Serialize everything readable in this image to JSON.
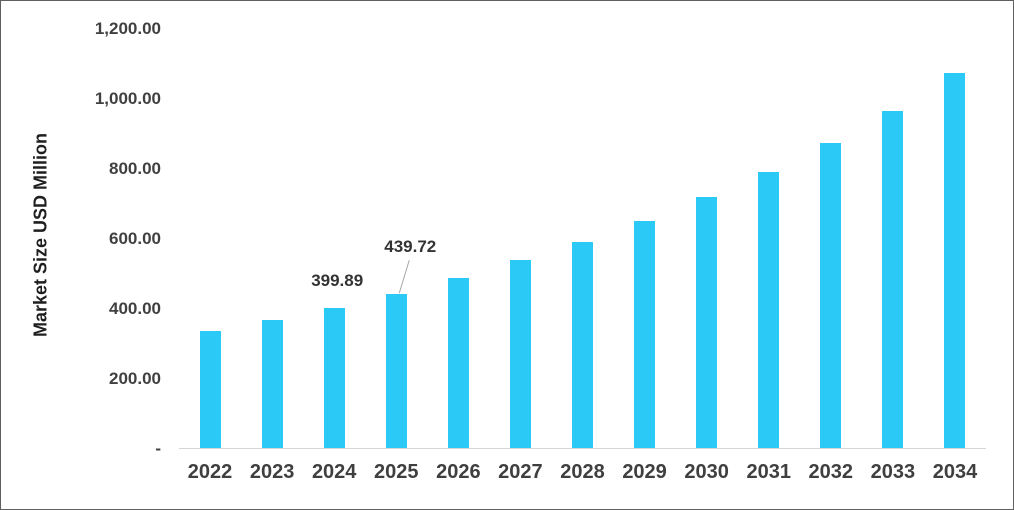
{
  "chart_data": {
    "type": "bar",
    "title": "",
    "xlabel": "",
    "ylabel": "Market Size USD Million",
    "categories": [
      "2022",
      "2023",
      "2024",
      "2025",
      "2026",
      "2027",
      "2028",
      "2029",
      "2030",
      "2031",
      "2032",
      "2033",
      "2034"
    ],
    "values": [
      333,
      367,
      399.89,
      439.72,
      486,
      536,
      589,
      649,
      716,
      789,
      872,
      963,
      1072
    ],
    "ylim": [
      0,
      1200
    ],
    "grid": false,
    "legend": "none",
    "bar_color": "#2bc9f5",
    "axis_line_color": "#d6d6d6",
    "leader_line_color": "#a6a6a6",
    "y_ticks": [
      {
        "value": 0,
        "label": "-"
      },
      {
        "value": 200,
        "label": "200.00"
      },
      {
        "value": 400,
        "label": "400.00"
      },
      {
        "value": 600,
        "label": "600.00"
      },
      {
        "value": 800,
        "label": "800.00"
      },
      {
        "value": 1000,
        "label": "1,000.00"
      },
      {
        "value": 1200,
        "label": "1,200.00"
      }
    ],
    "annotations": [
      {
        "category": "2024",
        "text": "399.89",
        "dx": 3,
        "gap": 18,
        "leader": false
      },
      {
        "category": "2025",
        "text": "439.72",
        "dx": 14,
        "gap": 38,
        "leader": true
      }
    ]
  }
}
